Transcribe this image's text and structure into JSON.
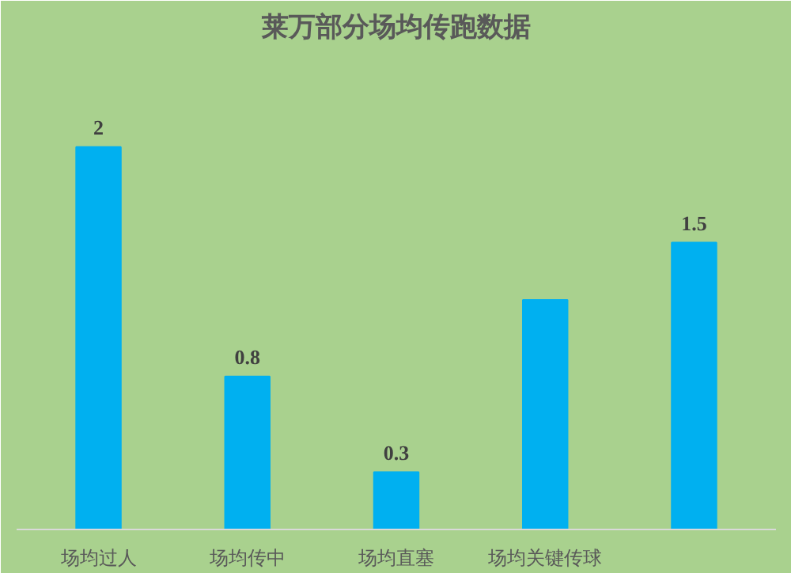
{
  "chart_data": {
    "type": "bar",
    "title": "莱万部分场均传跑数据",
    "categories": [
      "场均过人",
      "场均传中",
      "场均直塞",
      "场均关键传球",
      null
    ],
    "values": [
      2,
      0.8,
      0.3,
      1.2,
      1.5
    ],
    "color": "#00b0f0",
    "value_labels": [
      "2",
      "0.8",
      "0.3",
      null,
      "1.5"
    ]
  }
}
